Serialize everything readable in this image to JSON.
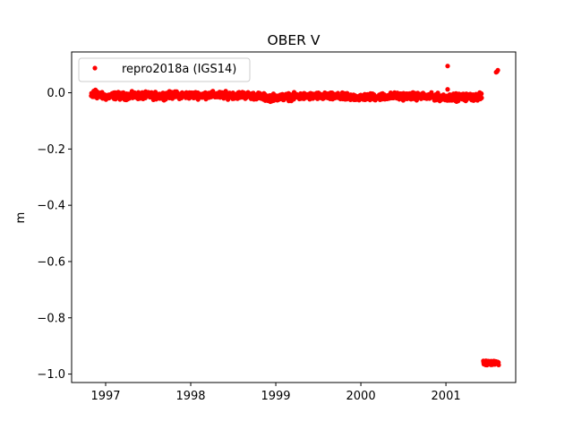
{
  "chart_data": {
    "type": "scatter",
    "title": "OBER V",
    "xlabel": "",
    "ylabel": "m",
    "xlim": [
      1996.6,
      2001.82
    ],
    "ylim": [
      -1.03,
      0.145
    ],
    "xticks": [
      1997,
      1998,
      1999,
      2000,
      2001
    ],
    "xtick_labels": [
      "1997",
      "1998",
      "1999",
      "2000",
      "2001"
    ],
    "yticks": [
      0.0,
      -0.2,
      -0.4,
      -0.6,
      -0.8,
      -1.0
    ],
    "ytick_labels": [
      "0.0",
      "−0.2",
      "−0.4",
      "−0.6",
      "−0.8",
      "−1.0"
    ],
    "grid": false,
    "legend_position": "top-left",
    "series": [
      {
        "name": "repro2018a (IGS14)",
        "color": "#ff0000",
        "marker": "circle",
        "main_x_range": [
          1996.83,
          2001.42
        ],
        "main_y_profile": [
          [
            1996.83,
            -0.012
          ],
          [
            1996.9,
            -0.008
          ],
          [
            1997.0,
            -0.014
          ],
          [
            1997.1,
            -0.01
          ],
          [
            1997.2,
            -0.012
          ],
          [
            1997.4,
            -0.01
          ],
          [
            1997.6,
            -0.011
          ],
          [
            1997.8,
            -0.008
          ],
          [
            1998.0,
            -0.009
          ],
          [
            1998.2,
            -0.008
          ],
          [
            1998.4,
            -0.009
          ],
          [
            1998.6,
            -0.008
          ],
          [
            1998.8,
            -0.012
          ],
          [
            1998.9,
            -0.018
          ],
          [
            1999.0,
            -0.016
          ],
          [
            1999.2,
            -0.014
          ],
          [
            1999.4,
            -0.012
          ],
          [
            1999.6,
            -0.013
          ],
          [
            1999.8,
            -0.015
          ],
          [
            2000.0,
            -0.016
          ],
          [
            2000.2,
            -0.014
          ],
          [
            2000.4,
            -0.012
          ],
          [
            2000.6,
            -0.012
          ],
          [
            2000.8,
            -0.014
          ],
          [
            2001.0,
            -0.016
          ],
          [
            2001.2,
            -0.016
          ],
          [
            2001.42,
            -0.014
          ]
        ],
        "outliers": [
          [
            2001.02,
            0.095
          ],
          [
            2001.02,
            0.012
          ],
          [
            2001.6,
            0.075
          ],
          [
            2001.61,
            0.08
          ],
          [
            2001.59,
            0.073
          ]
        ],
        "cluster": {
          "x_range": [
            2001.44,
            2001.62
          ],
          "y_values": [
            -0.955,
            -0.96,
            -0.963,
            -0.958,
            -0.965
          ]
        }
      }
    ]
  }
}
